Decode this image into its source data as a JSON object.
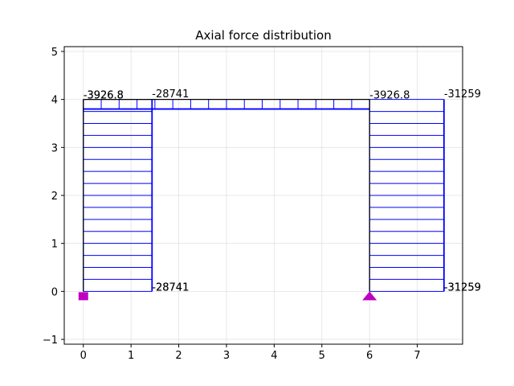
{
  "chart_data": {
    "type": "line",
    "title": "Axial force distribution",
    "xlabel": "",
    "ylabel": "",
    "xlim": [
      -0.4,
      7.95
    ],
    "ylim": [
      -1.1,
      5.1
    ],
    "xticks": [
      0,
      1,
      2,
      3,
      4,
      5,
      6,
      7
    ],
    "yticks": [
      -1,
      0,
      1,
      2,
      3,
      4,
      5
    ],
    "grid": true,
    "colors": {
      "structure": "#000000",
      "diagram": "#0000ff",
      "support": "#bf00bf"
    },
    "frame": {
      "members": [
        {
          "name": "left-column",
          "from": [
            0,
            0
          ],
          "to": [
            0,
            4
          ]
        },
        {
          "name": "beam",
          "from": [
            0,
            4
          ],
          "to": [
            6,
            4
          ]
        },
        {
          "name": "right-column",
          "from": [
            6,
            0
          ],
          "to": [
            6,
            4
          ]
        }
      ],
      "supports": [
        {
          "type": "fixed",
          "at": [
            0,
            0
          ]
        },
        {
          "type": "pinned",
          "at": [
            6,
            0
          ]
        }
      ]
    },
    "diagrams": [
      {
        "member": "left-column",
        "offset": 1.44,
        "side": "right",
        "hatch_count": 16
      },
      {
        "member": "beam",
        "offset": 0.2,
        "side": "down",
        "hatch_count": 16
      },
      {
        "member": "right-column",
        "offset": 1.56,
        "side": "right",
        "hatch_count": 16
      }
    ],
    "labels": [
      {
        "text": "-3926.8",
        "x": 0.0,
        "y": 4.0
      },
      {
        "text": "-3926.8",
        "x": 0.0,
        "y": 4.0
      },
      {
        "text": "-28741",
        "x": 1.44,
        "y": 4.03
      },
      {
        "text": "-28741",
        "x": 1.44,
        "y": 0.0
      },
      {
        "text": "-28741",
        "x": 1.44,
        "y": 0.0
      },
      {
        "text": "-3926.8",
        "x": 6.0,
        "y": 4.0
      },
      {
        "text": "-31259",
        "x": 7.56,
        "y": 4.03
      },
      {
        "text": "-31259",
        "x": 7.56,
        "y": 0.0
      },
      {
        "text": "-31259",
        "x": 7.56,
        "y": 0.0
      }
    ]
  }
}
